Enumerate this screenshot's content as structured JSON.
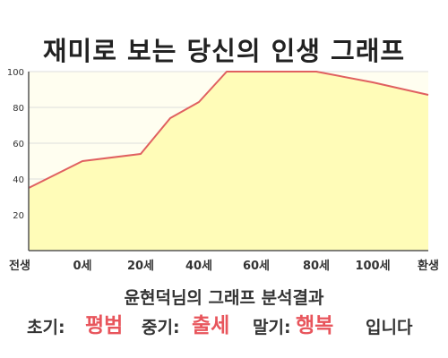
{
  "title": "재미로 보는 당신의 인생 그래프",
  "chart_data": {
    "type": "area",
    "x_categories": [
      "전생",
      "0세",
      "20세",
      "40세",
      "60세",
      "80세",
      "100세",
      "환생"
    ],
    "points": [
      {
        "x": "전생",
        "y": 35
      },
      {
        "x": "0세",
        "y": 50
      },
      {
        "x": "20세",
        "y": 54
      },
      {
        "x": "30세",
        "y": 74
      },
      {
        "x": "40세",
        "y": 83
      },
      {
        "x": "50세",
        "y": 100
      },
      {
        "x": "60세",
        "y": 100
      },
      {
        "x": "80세",
        "y": 100
      },
      {
        "x": "100세",
        "y": 94
      },
      {
        "x": "환생",
        "y": 87
      }
    ],
    "yticks": [
      20,
      40,
      60,
      80,
      100
    ],
    "ylim": [
      0,
      100
    ],
    "grid": true,
    "colors": {
      "line": "#e06060",
      "fill": "#fffcb8",
      "plot_bg": "#fffef0",
      "grid": "#dddddd"
    }
  },
  "analysis": {
    "heading": "윤현덕님의 그래프 분석결과",
    "early_label": "초기:",
    "early_value": "평범",
    "mid_label": "중기:",
    "mid_value": "출세",
    "late_label": "말기:",
    "late_value": "행복",
    "ending": "입니다"
  }
}
